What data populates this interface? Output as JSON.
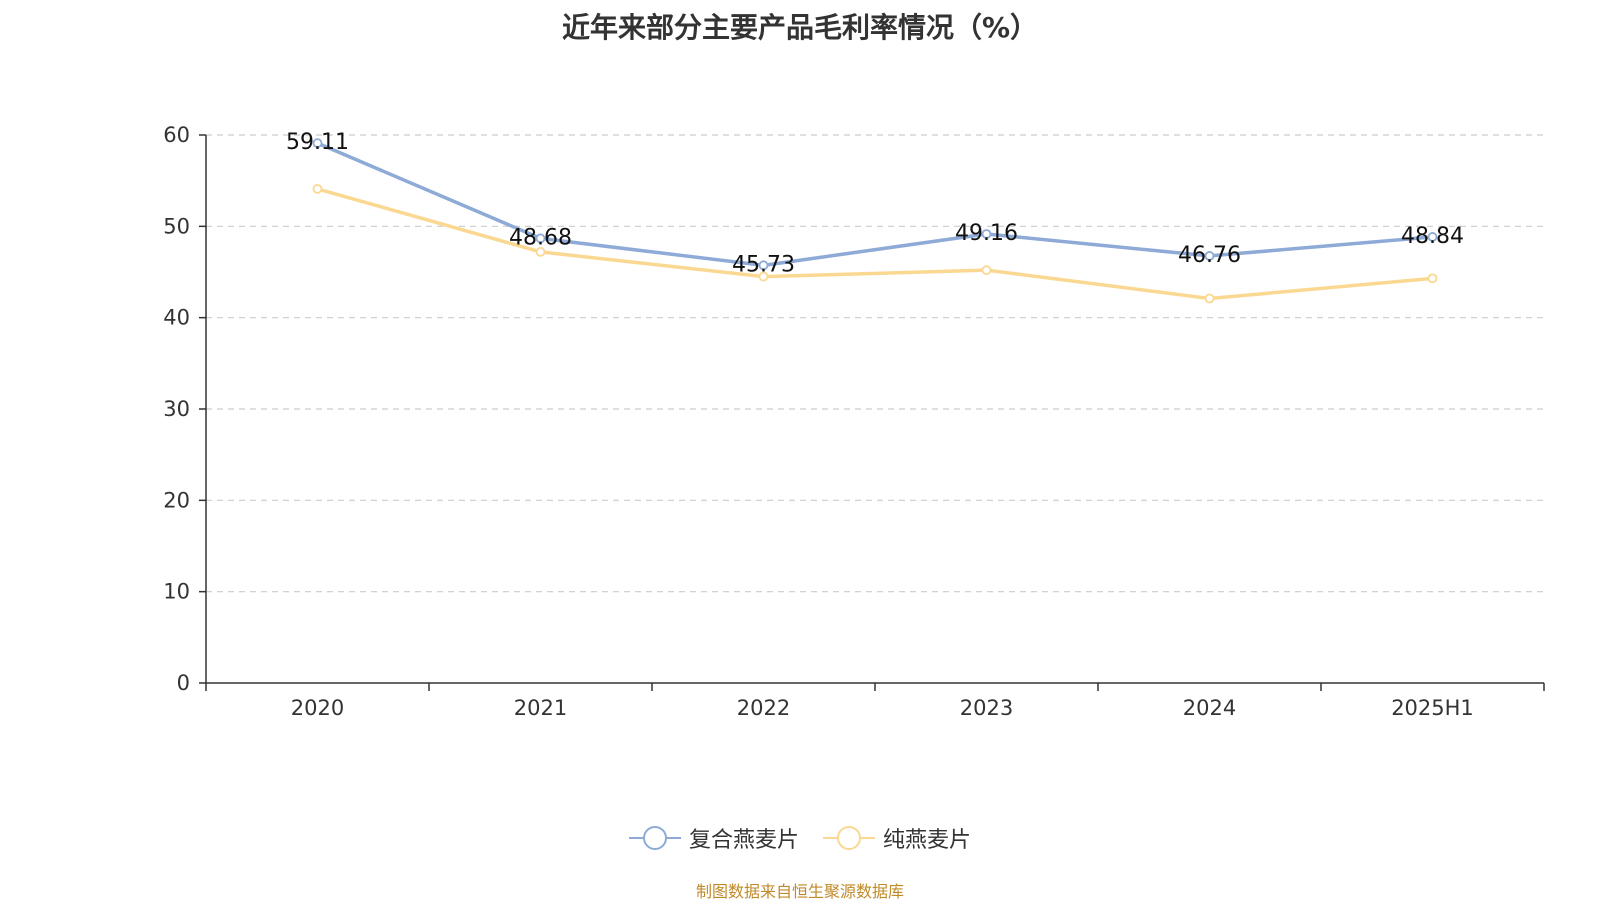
{
  "chart_data": {
    "type": "line",
    "title": "近年来部分主要产品毛利率情况（%）",
    "categories": [
      "2020",
      "2021",
      "2022",
      "2023",
      "2024",
      "2025H1"
    ],
    "yticks": [
      "0",
      "10",
      "20",
      "30",
      "40",
      "50",
      "60"
    ],
    "ylim": [
      0,
      60
    ],
    "grid": true,
    "legend_position": "bottom",
    "series": [
      {
        "name": "复合燕麦片",
        "color": "#8eaad6",
        "values": [
          59.11,
          48.68,
          45.73,
          49.16,
          46.76,
          48.84
        ],
        "labels": [
          "59.11",
          "48.68",
          "45.73",
          "49.16",
          "46.76",
          "48.84"
        ]
      },
      {
        "name": "纯燕麦片",
        "color": "#fad892",
        "values": [
          54.1,
          47.2,
          44.5,
          45.2,
          42.1,
          44.3
        ]
      }
    ]
  },
  "source": "制图数据来自恒生聚源数据库"
}
